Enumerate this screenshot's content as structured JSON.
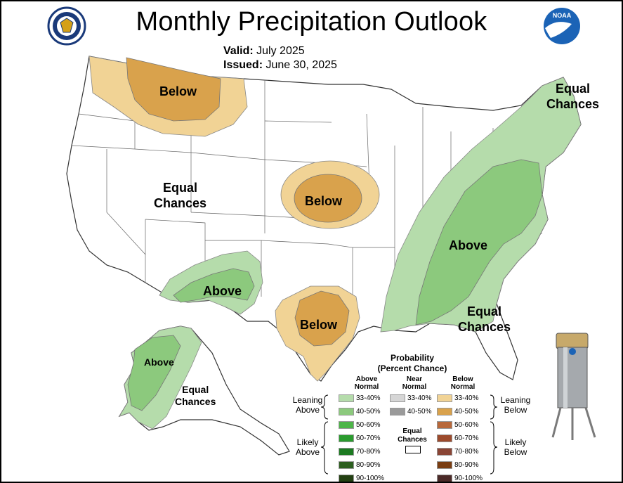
{
  "title": "Monthly Precipitation Outlook",
  "valid_label": "Valid:",
  "valid_value": "July 2025",
  "issued_label": "Issued:",
  "issued_value": "June 30, 2025",
  "logos": [
    {
      "name": "dept-of-commerce-seal-icon"
    },
    {
      "name": "noaa-logo-icon",
      "text": "NOAA"
    }
  ],
  "regions": [
    {
      "id": "northwest-below",
      "label": "Below"
    },
    {
      "id": "central-below",
      "label": "Below"
    },
    {
      "id": "texas-below",
      "label": "Below"
    },
    {
      "id": "southwest-above",
      "label": "Above"
    },
    {
      "id": "east-above",
      "label": "Above"
    },
    {
      "id": "alaska-above",
      "label": "Above"
    },
    {
      "id": "west-ec",
      "label": "Equal\nChances"
    },
    {
      "id": "northeast-ec",
      "label": "Equal\nChances"
    },
    {
      "id": "southeast-ec",
      "label": "Equal\nChances"
    },
    {
      "id": "alaska-ec",
      "label": "Equal\nChances"
    }
  ],
  "legend": {
    "title_line1": "Probability",
    "title_line2": "(Percent Chance)",
    "col_above": "Above\nNormal",
    "col_near": "Near\nNormal",
    "col_below": "Below\nNormal",
    "leaning_above": "Leaning\nAbove",
    "leaning_below": "Leaning\nBelow",
    "likely_above": "Likely\nAbove",
    "likely_below": "Likely\nBelow",
    "equal_chances": "Equal\nChances",
    "above": [
      {
        "range": "33-40%",
        "color": "#b5dcab"
      },
      {
        "range": "40-50%",
        "color": "#8cc97d"
      },
      {
        "range": "50-60%",
        "color": "#4db548"
      },
      {
        "range": "60-70%",
        "color": "#2a9b2e"
      },
      {
        "range": "70-80%",
        "color": "#1c7a21"
      },
      {
        "range": "80-90%",
        "color": "#2c5e1f"
      },
      {
        "range": "90-100%",
        "color": "#234012"
      }
    ],
    "near": [
      {
        "range": "33-40%",
        "color": "#d6d6d6"
      },
      {
        "range": "40-50%",
        "color": "#9a9a9a"
      }
    ],
    "below": [
      {
        "range": "33-40%",
        "color": "#f1d395"
      },
      {
        "range": "40-50%",
        "color": "#d9a24c"
      },
      {
        "range": "50-60%",
        "color": "#b8683a"
      },
      {
        "range": "60-70%",
        "color": "#9c4a2c"
      },
      {
        "range": "70-80%",
        "color": "#8a4535"
      },
      {
        "range": "80-90%",
        "color": "#7a3d12"
      },
      {
        "range": "90-100%",
        "color": "#4b2a28"
      }
    ]
  },
  "colors": {
    "above_33_40": "#b5dcab",
    "above_40_50": "#8cc97d",
    "below_33_40": "#f1d395",
    "below_40_50": "#d9a24c"
  },
  "rain_gauge_icon": "rain-gauge-icon"
}
